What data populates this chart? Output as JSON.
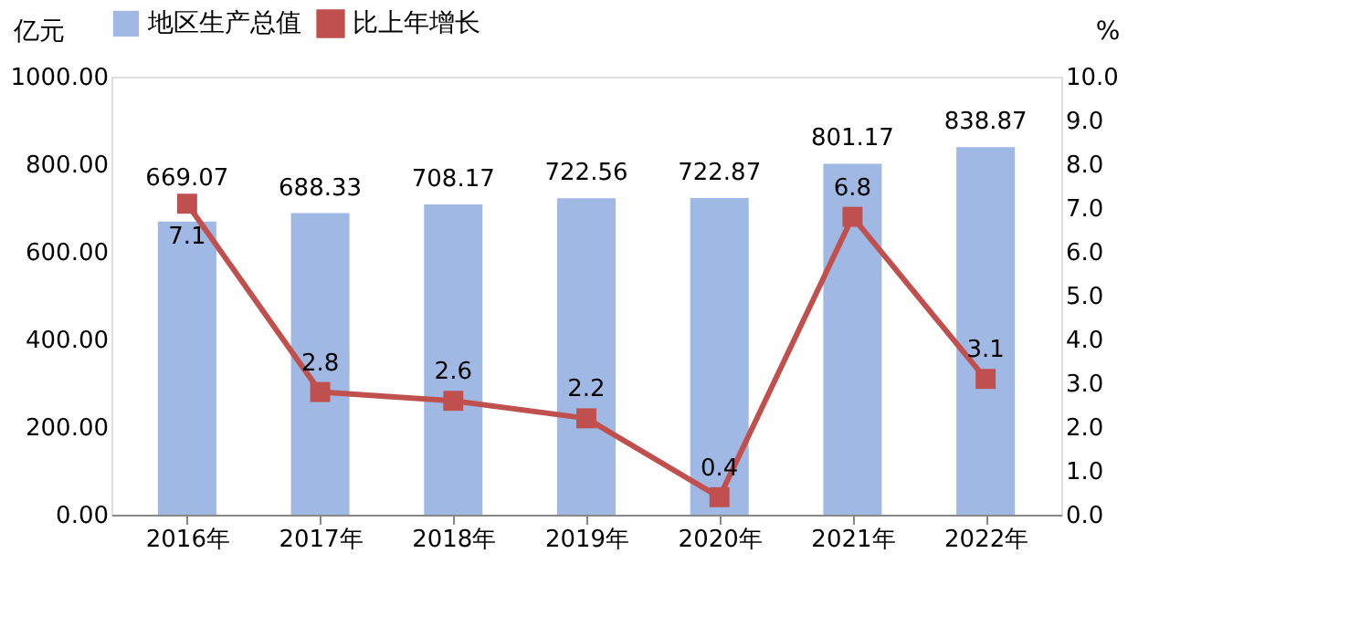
{
  "chart_data": {
    "type": "bar",
    "ylabel": "亿元",
    "y2label": "%",
    "categories": [
      "2016年",
      "2017年",
      "2018年",
      "2019年",
      "2020年",
      "2021年",
      "2022年"
    ],
    "series": [
      {
        "name": "地区生产总值",
        "color": "#9fb8e4",
        "values": [
          669.07,
          688.33,
          708.17,
          722.56,
          722.87,
          801.17,
          838.87
        ]
      },
      {
        "name": "比上年增长",
        "type": "line",
        "axis": "y2",
        "color": "#c0504d",
        "marker": "square",
        "values": [
          7.1,
          2.8,
          2.6,
          2.2,
          0.4,
          6.8,
          3.1
        ]
      }
    ],
    "ylim": [
      0,
      1000
    ],
    "yticks": [
      {
        "value": 0,
        "label": "0.00"
      },
      {
        "value": 200,
        "label": "200.00"
      },
      {
        "value": 400,
        "label": "400.00"
      },
      {
        "value": 600,
        "label": "600.00"
      },
      {
        "value": 800,
        "label": "800.00"
      },
      {
        "value": 1000,
        "label": "1000.00"
      }
    ],
    "y2lim": [
      0,
      10
    ],
    "y2ticks": [
      {
        "value": 0,
        "label": "0.0"
      },
      {
        "value": 1,
        "label": "1.0"
      },
      {
        "value": 2,
        "label": "2.0"
      },
      {
        "value": 3,
        "label": "3.0"
      },
      {
        "value": 4,
        "label": "4.0"
      },
      {
        "value": 5,
        "label": "5.0"
      },
      {
        "value": 6,
        "label": "6.0"
      },
      {
        "value": 7,
        "label": "7.0"
      },
      {
        "value": 8,
        "label": "8.0"
      },
      {
        "value": 9,
        "label": "9.0"
      },
      {
        "value": 10,
        "label": "10.0"
      }
    ],
    "data_labels": true,
    "legend": "top",
    "grid": false
  }
}
